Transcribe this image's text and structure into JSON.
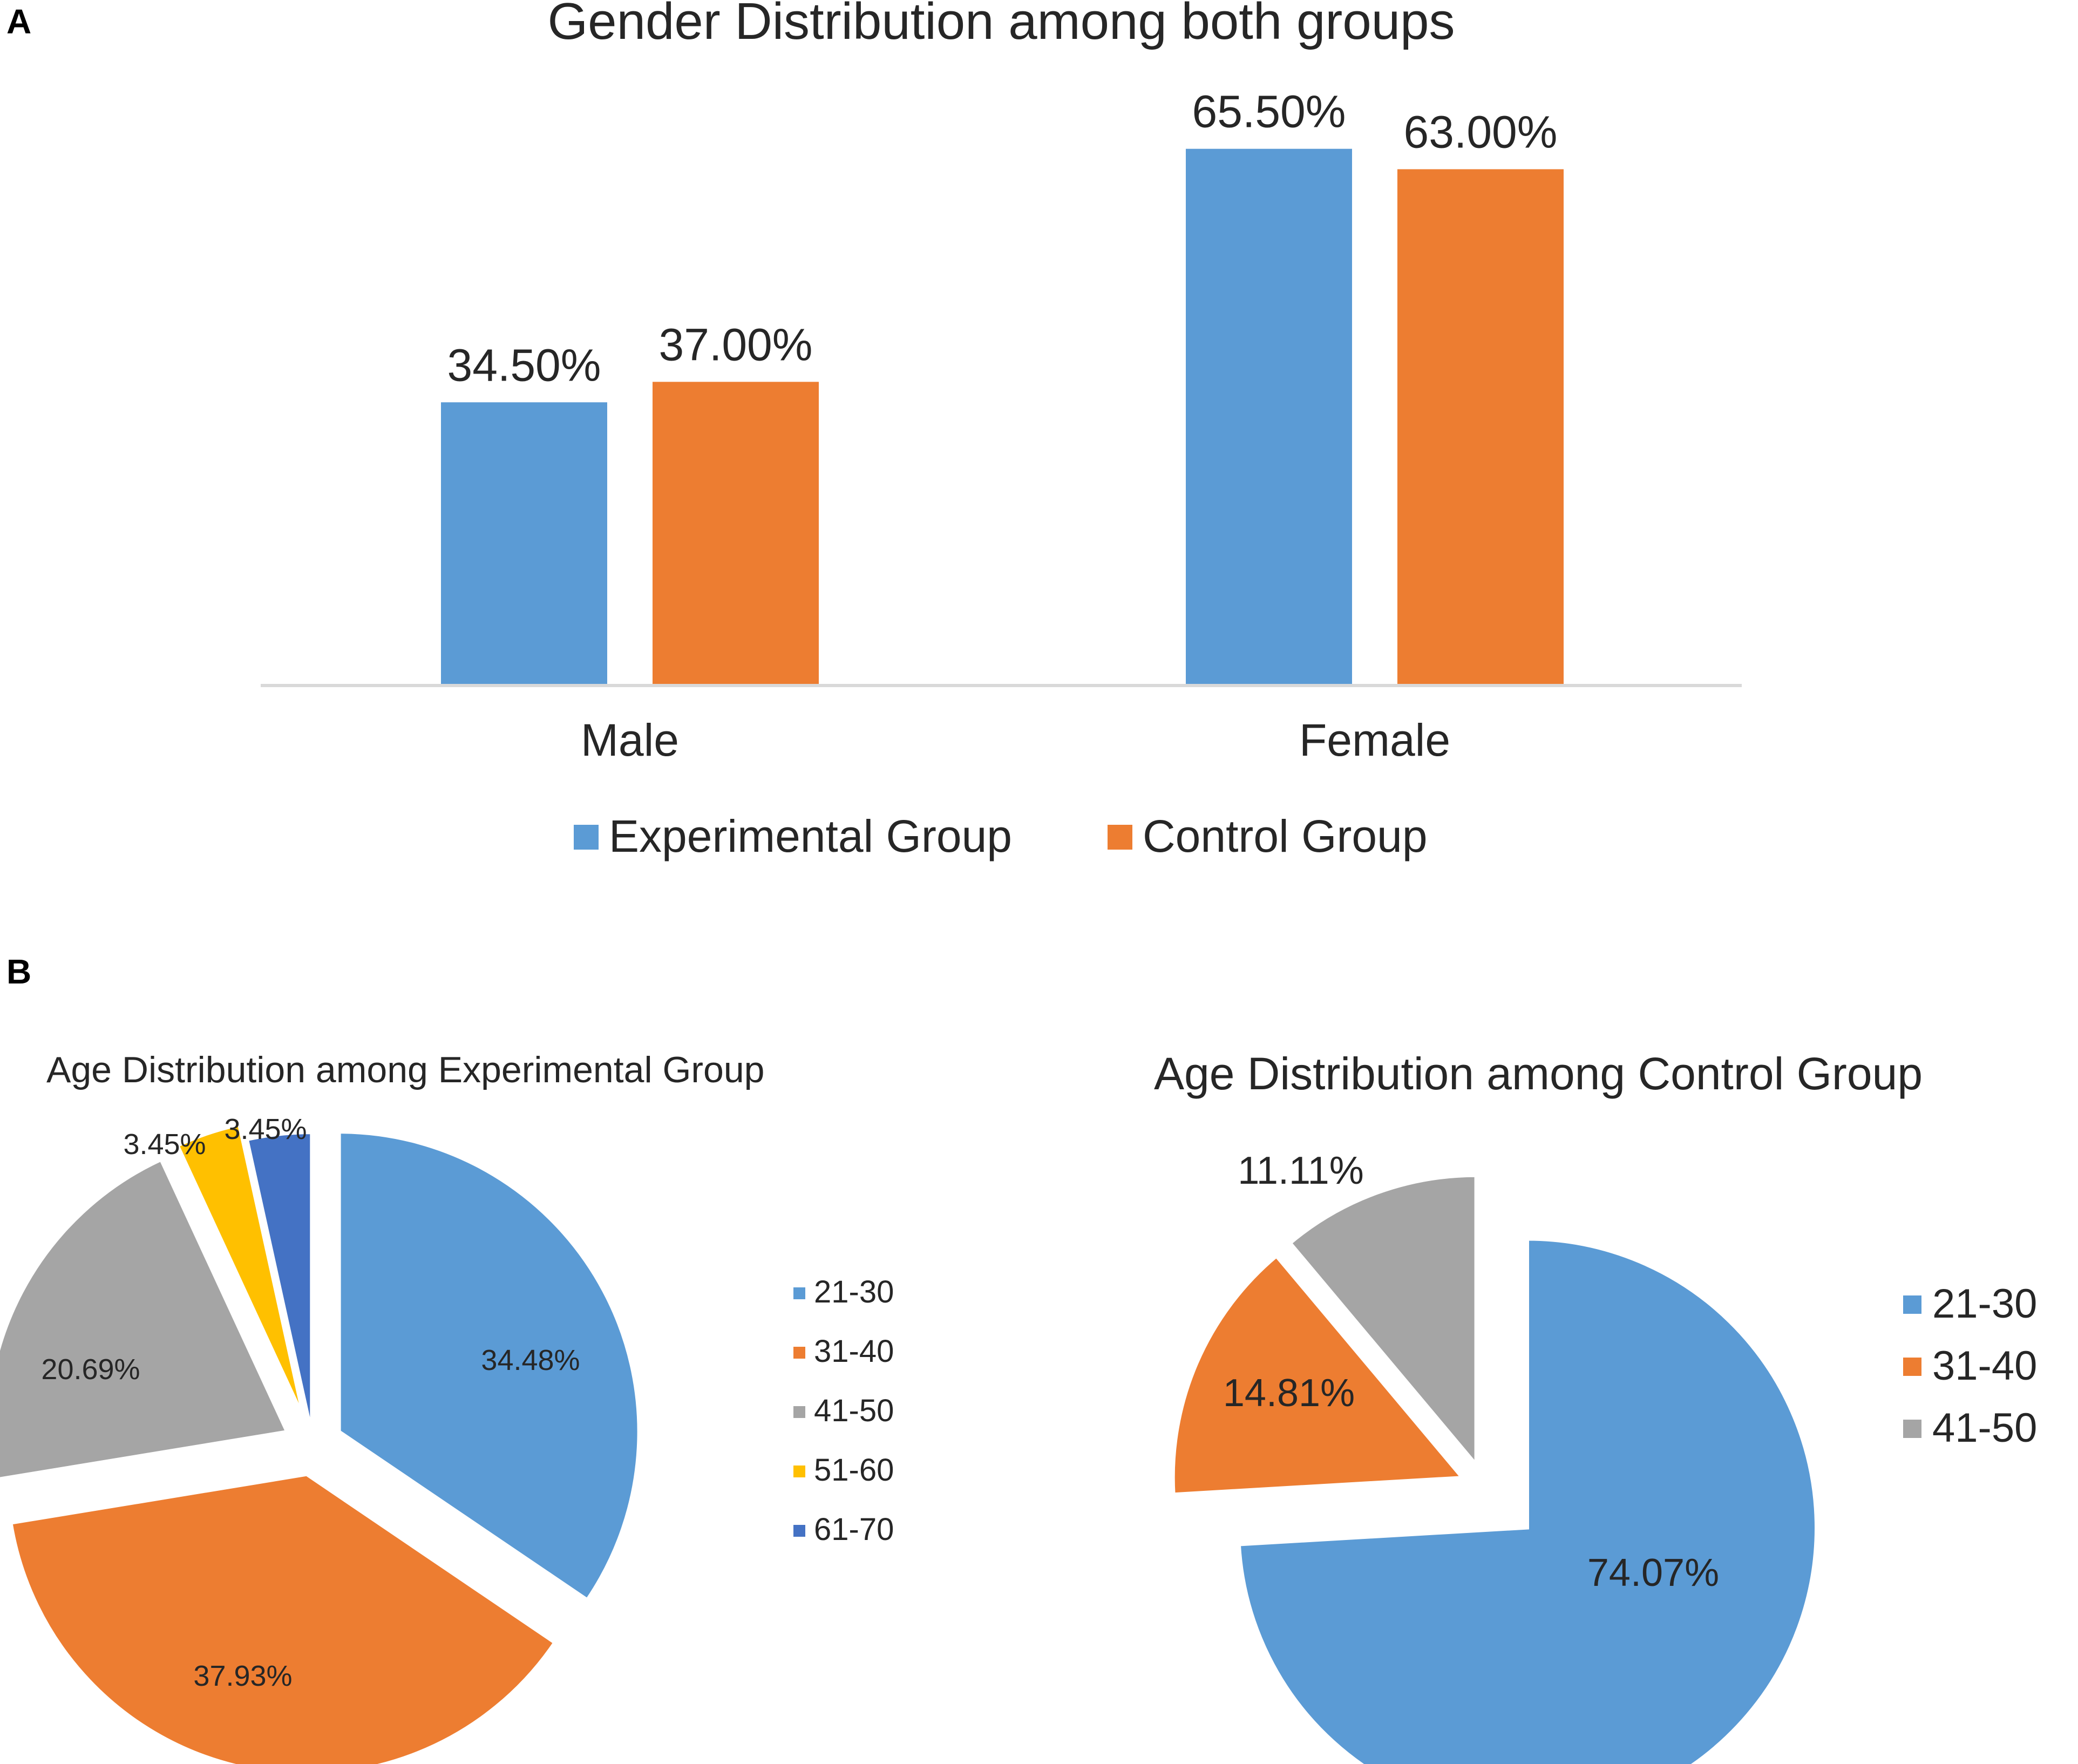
{
  "panels": {
    "a": "A",
    "b": "B"
  },
  "colors": {
    "blue": "#5B9BD5",
    "orange": "#ED7D31",
    "gray": "#A5A5A5",
    "yellow": "#FFC000",
    "darkblue": "#4472C4",
    "axis": "#D9D9D9",
    "text": "#262626"
  },
  "chart_data": [
    {
      "type": "bar",
      "title": "Gender Distribution among both groups",
      "categories": [
        "Male",
        "Female"
      ],
      "series": [
        {
          "name": "Experimental Group",
          "color": "#5B9BD5",
          "values": [
            34.5,
            65.5
          ],
          "labels": [
            "34.50%",
            "65.50%"
          ]
        },
        {
          "name": "Control Group",
          "color": "#ED7D31",
          "values": [
            37.0,
            63.0
          ],
          "labels": [
            "37.00%",
            "63.00%"
          ]
        }
      ],
      "ylim": [
        0,
        70
      ],
      "grid": false,
      "xlabel": "",
      "ylabel": "",
      "legend": "bottom"
    },
    {
      "type": "pie",
      "title": "Age Distribution among Experimental Group",
      "slices": [
        {
          "label": "21-30",
          "value": 34.48,
          "text": "34.48%",
          "color": "#5B9BD5"
        },
        {
          "label": "31-40",
          "value": 37.93,
          "text": "37.93%",
          "color": "#ED7D31"
        },
        {
          "label": "41-50",
          "value": 20.69,
          "text": "20.69%",
          "color": "#A5A5A5"
        },
        {
          "label": "51-60",
          "value": 3.45,
          "text": "3.45%",
          "color": "#FFC000"
        },
        {
          "label": "61-70",
          "value": 3.45,
          "text": "3.45%",
          "color": "#4472C4"
        }
      ],
      "exploded": true,
      "legend": "right"
    },
    {
      "type": "pie",
      "title": "Age Distribution among Control Group",
      "slices": [
        {
          "label": "21-30",
          "value": 74.07,
          "text": "74.07%",
          "color": "#5B9BD5"
        },
        {
          "label": "31-40",
          "value": 14.81,
          "text": "14.81%",
          "color": "#ED7D31"
        },
        {
          "label": "41-50",
          "value": 11.11,
          "text": "11.11%",
          "color": "#A5A5A5"
        }
      ],
      "exploded": true,
      "legend": "right"
    }
  ]
}
